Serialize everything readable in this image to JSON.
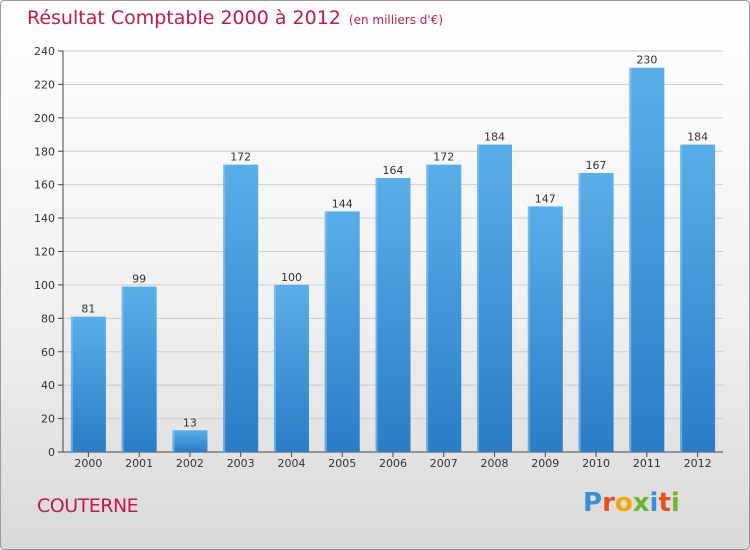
{
  "title": "Résultat Comptable 2000 à 2012",
  "subtitle": "(en milliers d'€)",
  "place": "COUTERNE",
  "logo": {
    "text": "Proxiti",
    "letters": [
      "P",
      "r",
      "o",
      "x",
      "i",
      "t",
      "i"
    ],
    "colors": [
      "#3a8fd6",
      "#e94e1b",
      "#f6a800",
      "#6cb52d",
      "#3a8fd6",
      "#e94e1b",
      "#6cb52d"
    ]
  },
  "colors": {
    "accent": "#c8174c",
    "bar_top": "#5aaee8",
    "bar_bottom": "#2a7dc6",
    "grid": "#cccccc"
  },
  "chart_data": {
    "type": "bar",
    "title": "Résultat Comptable 2000 à 2012",
    "subtitle": "(en milliers d'€)",
    "xlabel": "",
    "ylabel": "",
    "categories": [
      "2000",
      "2001",
      "2002",
      "2003",
      "2004",
      "2005",
      "2006",
      "2007",
      "2008",
      "2009",
      "2010",
      "2011",
      "2012"
    ],
    "values": [
      81,
      99,
      13,
      172,
      100,
      144,
      164,
      172,
      184,
      147,
      167,
      230,
      184
    ],
    "ylim": [
      0,
      240
    ],
    "yticks": [
      0,
      20,
      40,
      60,
      80,
      100,
      120,
      140,
      160,
      180,
      200,
      220,
      240
    ],
    "grid": true,
    "legend": "none"
  }
}
